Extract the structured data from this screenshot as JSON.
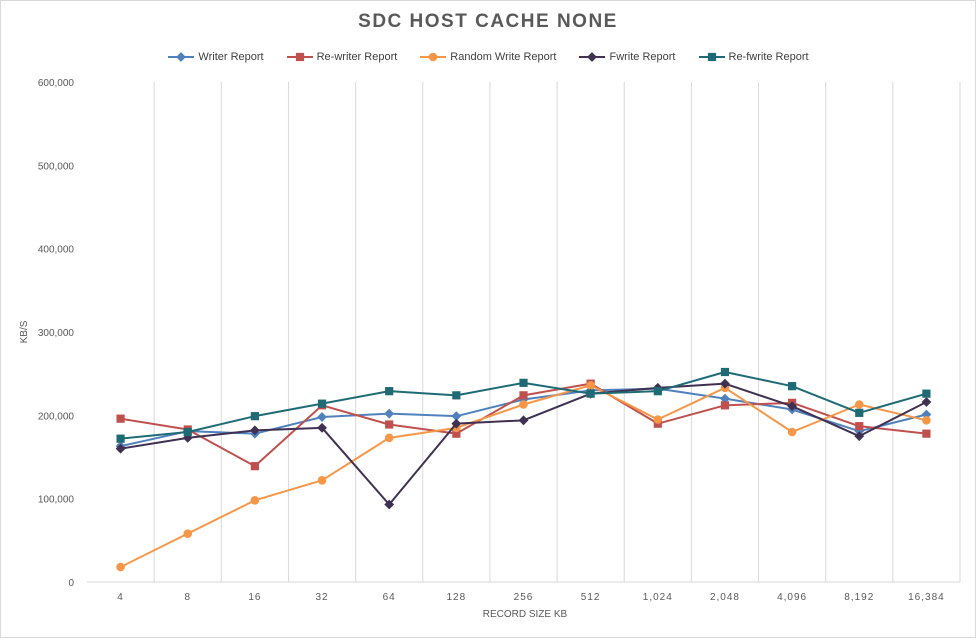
{
  "chart_data": {
    "type": "line",
    "title": "SDC HOST CACHE NONE",
    "xlabel": "RECORD SIZE KB",
    "ylabel": "KB/S",
    "categories": [
      "4",
      "8",
      "16",
      "32",
      "64",
      "128",
      "256",
      "512",
      "1,024",
      "2,048",
      "4,096",
      "8,192",
      "16,384"
    ],
    "y_ticks": [
      "0",
      "100,000",
      "200,000",
      "300,000",
      "400,000",
      "500,000",
      "600,000"
    ],
    "ylim": [
      0,
      600000
    ],
    "grid": "vertical",
    "legend_position": "top",
    "series": [
      {
        "name": "Writer Report",
        "color": "#4f81bd",
        "marker": "diamond",
        "values": [
          163000,
          181000,
          178000,
          198000,
          202000,
          199000,
          219000,
          230000,
          232000,
          220000,
          207000,
          181000,
          201000
        ]
      },
      {
        "name": "Re-writer Report",
        "color": "#c0504d",
        "marker": "square",
        "values": [
          196000,
          183000,
          139000,
          212000,
          189000,
          178000,
          224000,
          238000,
          190000,
          212000,
          215000,
          187000,
          178000
        ]
      },
      {
        "name": "Random Write Report",
        "color": "#f79646",
        "marker": "circle",
        "values": [
          18000,
          58000,
          98000,
          122000,
          173000,
          185000,
          213000,
          236000,
          195000,
          233000,
          180000,
          213000,
          194000
        ]
      },
      {
        "name": "Fwrite Report",
        "color": "#403152",
        "marker": "diamond",
        "values": [
          160000,
          173000,
          182000,
          185000,
          93000,
          190000,
          194000,
          226000,
          233000,
          238000,
          211000,
          175000,
          216000
        ]
      },
      {
        "name": "Re-fwrite Report",
        "color": "#1f6b75",
        "marker": "square",
        "values": [
          172000,
          180000,
          199000,
          214000,
          229000,
          224000,
          239000,
          226000,
          229000,
          252000,
          235000,
          203000,
          226000
        ]
      }
    ]
  }
}
